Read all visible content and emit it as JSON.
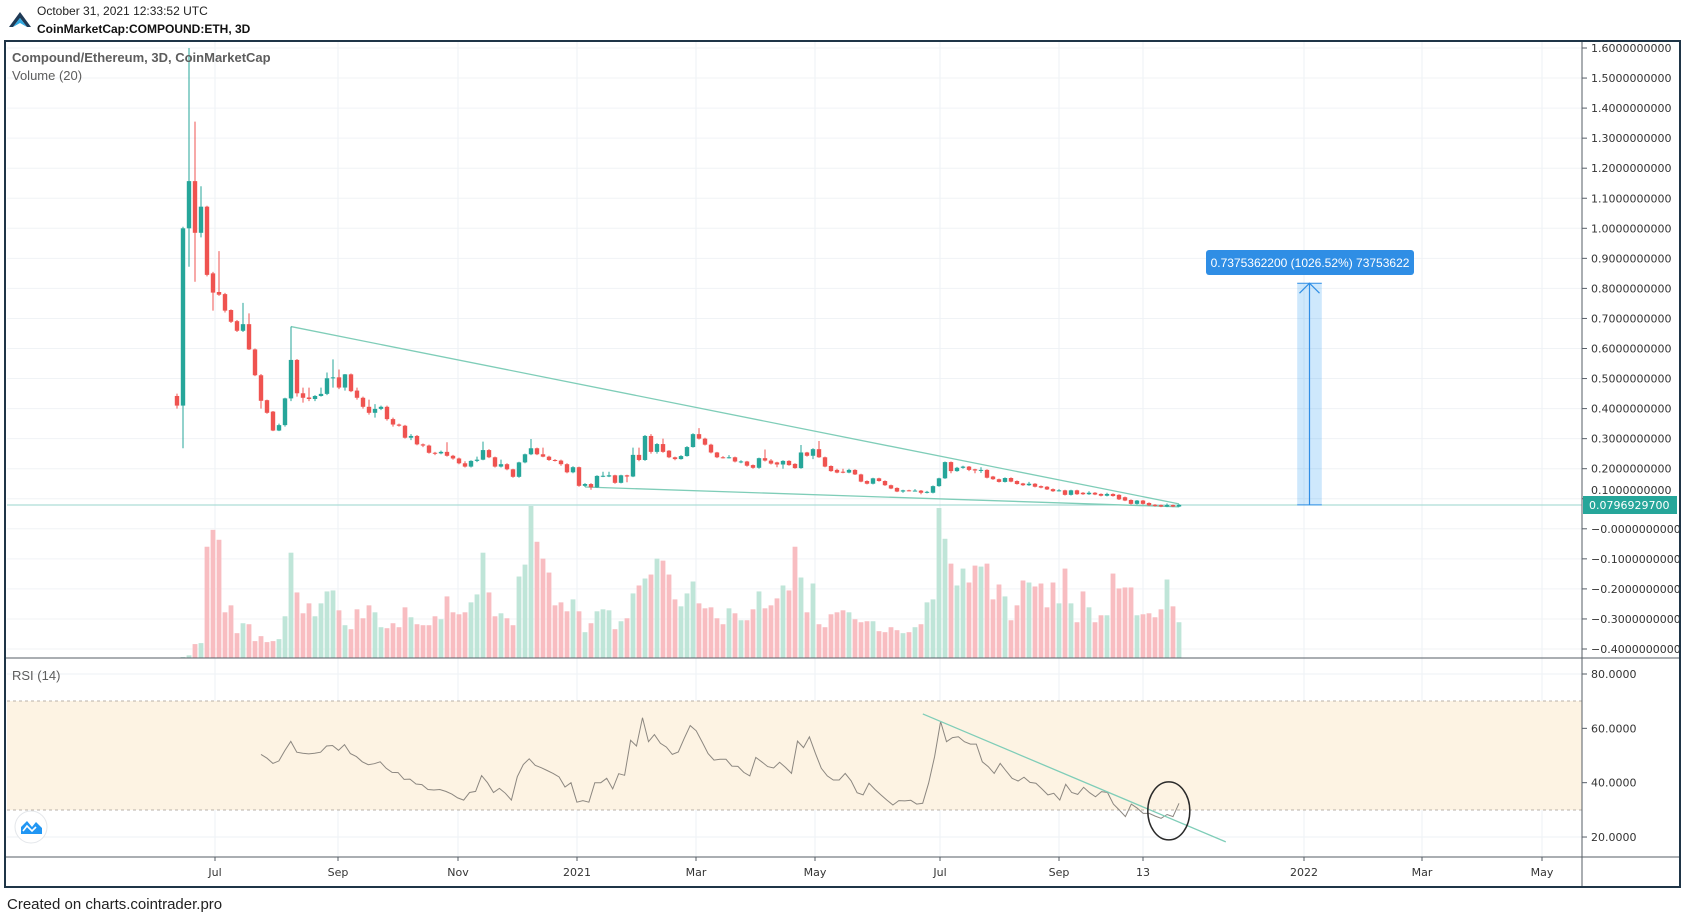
{
  "header": {
    "timestamp": "October 31, 2021 12:33:52 UTC",
    "symbol": "CoinMarketCap:COMPOUND:ETH, 3D"
  },
  "legend": {
    "title": "Compound/Ethereum, 3D, CoinMarketCap",
    "volume": "Volume (20)",
    "rsi": "RSI (14)"
  },
  "footer": "Created on charts.cointrader.pro",
  "colors": {
    "up": "#26a69a",
    "down": "#ef5350",
    "vol_up": "#bfe5d8",
    "vol_down": "#f8bdc1",
    "trendline": "#7fcdb8",
    "rsi_line": "#8c8780",
    "rsi_band": "#fdf3e3",
    "measure": "#2f8ee5",
    "frame": "#1f3547"
  },
  "chart_data": {
    "type": "candlestick",
    "title": "Compound/Ethereum, 3D, CoinMarketCap",
    "interval": "3D",
    "last_price": 0.07969297,
    "last_price_label": "0.0796929700",
    "price_axis": {
      "range": [
        -0.4,
        1.6
      ],
      "labels": [
        "1.6000000000",
        "1.5000000000",
        "1.4000000000",
        "1.3000000000",
        "1.2000000000",
        "1.1000000000",
        "1.0000000000",
        "0.9000000000",
        "0.8000000000",
        "0.7000000000",
        "0.6000000000",
        "0.5000000000",
        "0.4000000000",
        "0.3000000000",
        "0.2000000000",
        "0.1000000000",
        "−0.0000000000",
        "−0.1000000000",
        "−0.2000000000",
        "−0.3000000000",
        "−0.4000000000"
      ]
    },
    "rsi_axis": {
      "range": [
        15,
        85
      ],
      "labels": [
        "80.0000",
        "60.0000",
        "40.0000",
        "20.0000"
      ],
      "values": [
        80,
        60,
        40,
        20
      ],
      "band": [
        30,
        70
      ]
    },
    "time_axis": {
      "labels": [
        "Jul",
        "Sep",
        "Nov",
        "2021",
        "Mar",
        "May",
        "Jul",
        "Sep",
        "13",
        "2022",
        "Mar",
        "May"
      ]
    },
    "candles_ohlc": [
      [
        0.442,
        0.45,
        0.4,
        0.41
      ],
      [
        0.41,
        1.005,
        0.268,
        1.0
      ],
      [
        1.0,
        1.6,
        0.872,
        1.157
      ],
      [
        1.157,
        1.355,
        0.822,
        0.985
      ],
      [
        0.985,
        1.14,
        0.97,
        1.072
      ],
      [
        1.072,
        1.075,
        0.84,
        0.845
      ],
      [
        0.85,
        0.855,
        0.726,
        0.786
      ],
      [
        0.788,
        0.924,
        0.775,
        0.779
      ],
      [
        0.781,
        0.785,
        0.72,
        0.726
      ],
      [
        0.728,
        0.73,
        0.685,
        0.689
      ],
      [
        0.691,
        0.695,
        0.655,
        0.659
      ],
      [
        0.659,
        0.752,
        0.655,
        0.681
      ],
      [
        0.681,
        0.717,
        0.595,
        0.597
      ],
      [
        0.597,
        0.6,
        0.508,
        0.511
      ],
      [
        0.511,
        0.515,
        0.4,
        0.426
      ],
      [
        0.428,
        0.43,
        0.383,
        0.386
      ],
      [
        0.39,
        0.392,
        0.325,
        0.327
      ],
      [
        0.327,
        0.35,
        0.325,
        0.345
      ],
      [
        0.345,
        0.436,
        0.34,
        0.434
      ],
      [
        0.434,
        0.673,
        0.425,
        0.562
      ],
      [
        0.562,
        0.565,
        0.44,
        0.451
      ],
      [
        0.451,
        0.47,
        0.42,
        0.436
      ],
      [
        0.437,
        0.47,
        0.425,
        0.432
      ],
      [
        0.432,
        0.445,
        0.425,
        0.442
      ],
      [
        0.442,
        0.47,
        0.44,
        0.449
      ],
      [
        0.449,
        0.52,
        0.445,
        0.501
      ],
      [
        0.501,
        0.564,
        0.47,
        0.504
      ],
      [
        0.504,
        0.53,
        0.465,
        0.47
      ],
      [
        0.47,
        0.515,
        0.46,
        0.514
      ],
      [
        0.514,
        0.517,
        0.455,
        0.458
      ],
      [
        0.46,
        0.47,
        0.43,
        0.436
      ],
      [
        0.436,
        0.44,
        0.4,
        0.406
      ],
      [
        0.406,
        0.43,
        0.38,
        0.386
      ],
      [
        0.386,
        0.415,
        0.37,
        0.399
      ],
      [
        0.399,
        0.41,
        0.395,
        0.406
      ],
      [
        0.406,
        0.41,
        0.36,
        0.365
      ],
      [
        0.365,
        0.37,
        0.34,
        0.347
      ],
      [
        0.347,
        0.35,
        0.34,
        0.343
      ],
      [
        0.343,
        0.346,
        0.3,
        0.303
      ],
      [
        0.303,
        0.315,
        0.295,
        0.309
      ],
      [
        0.309,
        0.312,
        0.278,
        0.281
      ],
      [
        0.281,
        0.284,
        0.272,
        0.277
      ],
      [
        0.277,
        0.28,
        0.25,
        0.253
      ],
      [
        0.253,
        0.256,
        0.245,
        0.251
      ],
      [
        0.251,
        0.26,
        0.248,
        0.256
      ],
      [
        0.256,
        0.288,
        0.24,
        0.243
      ],
      [
        0.243,
        0.246,
        0.23,
        0.234
      ],
      [
        0.234,
        0.237,
        0.215,
        0.218
      ],
      [
        0.218,
        0.225,
        0.204,
        0.207
      ],
      [
        0.207,
        0.228,
        0.204,
        0.226
      ],
      [
        0.226,
        0.24,
        0.222,
        0.23
      ],
      [
        0.23,
        0.29,
        0.228,
        0.262
      ],
      [
        0.262,
        0.265,
        0.235,
        0.238
      ],
      [
        0.238,
        0.24,
        0.204,
        0.207
      ],
      [
        0.207,
        0.23,
        0.204,
        0.215
      ],
      [
        0.215,
        0.218,
        0.195,
        0.198
      ],
      [
        0.198,
        0.2,
        0.17,
        0.173
      ],
      [
        0.173,
        0.223,
        0.17,
        0.221
      ],
      [
        0.221,
        0.25,
        0.218,
        0.248
      ],
      [
        0.248,
        0.299,
        0.245,
        0.268
      ],
      [
        0.268,
        0.27,
        0.245,
        0.248
      ],
      [
        0.248,
        0.27,
        0.238,
        0.24
      ],
      [
        0.24,
        0.243,
        0.226,
        0.229
      ],
      [
        0.229,
        0.232,
        0.224,
        0.227
      ],
      [
        0.227,
        0.23,
        0.21,
        0.215
      ],
      [
        0.215,
        0.218,
        0.185,
        0.188
      ],
      [
        0.188,
        0.208,
        0.185,
        0.205
      ],
      [
        0.205,
        0.207,
        0.14,
        0.143
      ],
      [
        0.143,
        0.152,
        0.139,
        0.149
      ],
      [
        0.149,
        0.152,
        0.13,
        0.138
      ],
      [
        0.138,
        0.178,
        0.136,
        0.176
      ],
      [
        0.176,
        0.19,
        0.172,
        0.1765
      ],
      [
        0.174,
        0.19,
        0.172,
        0.178
      ],
      [
        0.178,
        0.18,
        0.15,
        0.153
      ],
      [
        0.153,
        0.18,
        0.151,
        0.178
      ],
      [
        0.178,
        0.18,
        0.155,
        0.174
      ],
      [
        0.174,
        0.27,
        0.172,
        0.246
      ],
      [
        0.246,
        0.27,
        0.225,
        0.229
      ],
      [
        0.229,
        0.312,
        0.226,
        0.309
      ],
      [
        0.309,
        0.315,
        0.25,
        0.256
      ],
      [
        0.256,
        0.285,
        0.25,
        0.282
      ],
      [
        0.282,
        0.3,
        0.253,
        0.256
      ],
      [
        0.26,
        0.262,
        0.235,
        0.238
      ],
      [
        0.238,
        0.24,
        0.228,
        0.232
      ],
      [
        0.232,
        0.245,
        0.23,
        0.242
      ],
      [
        0.242,
        0.275,
        0.24,
        0.272
      ],
      [
        0.272,
        0.318,
        0.27,
        0.315
      ],
      [
        0.315,
        0.335,
        0.297,
        0.3
      ],
      [
        0.3,
        0.303,
        0.277,
        0.28
      ],
      [
        0.28,
        0.283,
        0.251,
        0.254
      ],
      [
        0.254,
        0.256,
        0.235,
        0.238
      ],
      [
        0.238,
        0.242,
        0.234,
        0.237
      ],
      [
        0.237,
        0.245,
        0.234,
        0.238
      ],
      [
        0.238,
        0.24,
        0.221,
        0.224
      ],
      [
        0.224,
        0.228,
        0.218,
        0.2242
      ],
      [
        0.224,
        0.226,
        0.207,
        0.21
      ],
      [
        0.212,
        0.214,
        0.2,
        0.203
      ],
      [
        0.203,
        0.237,
        0.2,
        0.235
      ],
      [
        0.235,
        0.264,
        0.224,
        0.227
      ],
      [
        0.227,
        0.232,
        0.214,
        0.217
      ],
      [
        0.221,
        0.223,
        0.205,
        0.214
      ],
      [
        0.214,
        0.228,
        0.2,
        0.226
      ],
      [
        0.226,
        0.228,
        0.21,
        0.212
      ],
      [
        0.216,
        0.218,
        0.2,
        0.202
      ],
      [
        0.202,
        0.279,
        0.2,
        0.254
      ],
      [
        0.254,
        0.256,
        0.24,
        0.243
      ],
      [
        0.243,
        0.268,
        0.232,
        0.265
      ],
      [
        0.265,
        0.292,
        0.236,
        0.238
      ],
      [
        0.238,
        0.24,
        0.205,
        0.207
      ],
      [
        0.209,
        0.211,
        0.19,
        0.192
      ],
      [
        0.196,
        0.2,
        0.185,
        0.187
      ],
      [
        0.19,
        0.2,
        0.185,
        0.187
      ],
      [
        0.187,
        0.2,
        0.185,
        0.196
      ],
      [
        0.196,
        0.198,
        0.179,
        0.181
      ],
      [
        0.181,
        0.183,
        0.155,
        0.157
      ],
      [
        0.159,
        0.161,
        0.148,
        0.15
      ],
      [
        0.15,
        0.17,
        0.148,
        0.168
      ],
      [
        0.168,
        0.17,
        0.157,
        0.159
      ],
      [
        0.159,
        0.161,
        0.143,
        0.145
      ],
      [
        0.145,
        0.147,
        0.132,
        0.134
      ],
      [
        0.136,
        0.138,
        0.122,
        0.124
      ],
      [
        0.124,
        0.13,
        0.12,
        0.128
      ],
      [
        0.128,
        0.13,
        0.125,
        0.127
      ],
      [
        0.127,
        0.132,
        0.124,
        0.1272
      ],
      [
        0.127,
        0.129,
        0.115,
        0.12
      ],
      [
        0.12,
        0.126,
        0.118,
        0.123
      ],
      [
        0.12,
        0.144,
        0.118,
        0.142
      ],
      [
        0.142,
        0.17,
        0.14,
        0.168
      ],
      [
        0.168,
        0.224,
        0.166,
        0.222
      ],
      [
        0.222,
        0.224,
        0.185,
        0.192
      ],
      [
        0.192,
        0.206,
        0.19,
        0.203
      ],
      [
        0.203,
        0.21,
        0.2,
        0.207
      ],
      [
        0.207,
        0.209,
        0.192,
        0.196
      ],
      [
        0.198,
        0.2,
        0.185,
        0.194
      ],
      [
        0.194,
        0.205,
        0.186,
        0.196
      ],
      [
        0.196,
        0.198,
        0.168,
        0.17
      ],
      [
        0.174,
        0.176,
        0.163,
        0.165
      ],
      [
        0.165,
        0.167,
        0.154,
        0.156
      ],
      [
        0.156,
        0.171,
        0.154,
        0.169
      ],
      [
        0.169,
        0.171,
        0.155,
        0.157
      ],
      [
        0.159,
        0.161,
        0.147,
        0.149
      ],
      [
        0.151,
        0.153,
        0.143,
        0.145
      ],
      [
        0.145,
        0.156,
        0.143,
        0.15
      ],
      [
        0.15,
        0.152,
        0.138,
        0.14
      ],
      [
        0.142,
        0.144,
        0.135,
        0.137
      ],
      [
        0.14,
        0.142,
        0.129,
        0.131
      ],
      [
        0.132,
        0.134,
        0.123,
        0.125
      ],
      [
        0.125,
        0.132,
        0.124,
        0.128
      ],
      [
        0.128,
        0.13,
        0.111,
        0.113
      ],
      [
        0.113,
        0.13,
        0.111,
        0.128
      ],
      [
        0.128,
        0.13,
        0.113,
        0.115
      ],
      [
        0.12,
        0.122,
        0.113,
        0.115
      ],
      [
        0.115,
        0.125,
        0.113,
        0.12
      ],
      [
        0.12,
        0.122,
        0.112,
        0.114
      ],
      [
        0.116,
        0.118,
        0.108,
        0.11
      ],
      [
        0.11,
        0.12,
        0.108,
        0.116
      ],
      [
        0.116,
        0.118,
        0.107,
        0.109
      ],
      [
        0.113,
        0.115,
        0.096,
        0.098
      ],
      [
        0.105,
        0.107,
        0.092,
        0.094
      ],
      [
        0.096,
        0.098,
        0.081,
        0.083
      ],
      [
        0.083,
        0.096,
        0.081,
        0.094
      ],
      [
        0.094,
        0.096,
        0.081,
        0.083
      ],
      [
        0.086,
        0.088,
        0.076,
        0.078
      ],
      [
        0.08,
        0.082,
        0.074,
        0.076
      ],
      [
        0.079,
        0.081,
        0.072,
        0.074
      ],
      [
        0.074,
        0.084,
        0.072,
        0.079
      ],
      [
        0.079,
        0.081,
        0.072,
        0.074
      ],
      [
        0.074,
        0.082,
        0.072,
        0.0797
      ]
    ],
    "volume_relative": [
      0,
      1,
      2.7,
      14,
      15,
      112,
      129,
      119,
      46,
      53,
      25,
      35,
      34,
      17,
      22,
      16,
      17,
      19,
      42,
      106,
      66,
      45,
      55,
      42,
      55,
      67,
      68,
      48,
      33,
      29,
      49,
      40,
      53,
      46,
      31,
      30,
      35,
      31,
      51,
      41,
      34,
      33,
      33,
      42,
      39,
      62,
      46,
      44,
      46,
      56,
      64,
      106,
      66,
      42,
      45,
      40,
      33,
      82,
      94,
      153,
      117,
      100,
      86,
      53,
      56,
      47,
      59,
      47,
      26,
      35,
      47,
      49,
      48,
      29,
      37,
      40,
      65,
      73,
      80,
      84,
      100,
      98,
      84,
      59,
      52,
      65,
      77,
      55,
      50,
      51,
      40,
      34,
      50,
      45,
      38,
      38,
      49,
      67,
      50,
      53,
      60,
      73,
      68,
      112,
      81,
      46,
      75,
      34,
      31,
      44,
      46,
      48,
      46,
      39,
      36,
      37,
      37,
      27,
      26,
      31,
      28,
      25,
      26,
      31,
      34,
      56,
      59,
      151,
      120,
      95,
      73,
      90,
      76,
      93,
      92,
      95,
      59,
      74,
      62,
      38,
      53,
      78,
      76,
      72,
      75,
      51,
      76,
      55,
      90,
      55,
      36,
      67,
      51,
      36,
      43,
      43,
      85,
      70,
      71,
      71,
      43,
      44,
      45,
      41,
      49,
      79,
      52,
      36
    ],
    "rsi_start_bar": 14,
    "rsi": [
      50.4,
      49.0,
      47.1,
      48.0,
      51.8,
      55.2,
      51.2,
      50.8,
      50.6,
      50.8,
      51.2,
      53.5,
      53.7,
      51.9,
      54.0,
      50.7,
      49.6,
      47.7,
      46.6,
      47.0,
      47.7,
      45.3,
      43.8,
      43.7,
      41.2,
      41.3,
      39.5,
      39.3,
      37.5,
      37.3,
      37.5,
      36.8,
      35.8,
      34.4,
      33.6,
      36.4,
      36.8,
      42.6,
      40.0,
      36.4,
      37.9,
      36.1,
      33.6,
      42.2,
      46.7,
      48.8,
      46.4,
      45.5,
      44.5,
      43.4,
      42.1,
      38.4,
      40.0,
      32.8,
      33.4,
      32.8,
      40.0,
      40.0,
      41.6,
      37.7,
      43.3,
      42.7,
      55.6,
      53.5,
      63.9,
      55.1,
      57.7,
      54.5,
      53.1,
      50.4,
      51.3,
      56.3,
      61.0,
      59.1,
      55.0,
      50.7,
      48.3,
      48.6,
      48.6,
      46.1,
      46.0,
      43.8,
      42.5,
      49.3,
      47.7,
      45.9,
      45.4,
      47.5,
      45.6,
      43.4,
      55.3,
      52.9,
      56.9,
      50.8,
      45.3,
      42.5,
      41.0,
      41.0,
      43.4,
      40.7,
      36.3,
      35.5,
      39.8,
      37.5,
      35.5,
      33.6,
      31.8,
      33.4,
      33.3,
      33.5,
      32.1,
      32.4,
      39.8,
      49.6,
      62.5,
      55.1,
      56.6,
      56.9,
      55.1,
      54.2,
      54.2,
      47.7,
      45.9,
      43.4,
      47.1,
      44.3,
      41.6,
      40.6,
      42.0,
      40.1,
      39.8,
      37.7,
      35.5,
      36.1,
      33.6,
      39.4,
      36.4,
      35.7,
      38.3,
      36.3,
      34.8,
      36.7,
      36.4,
      32.1,
      29.9,
      27.5,
      32.1,
      30.6,
      28.7,
      28.7,
      27.7,
      26.9,
      28.3,
      27.5,
      32.4
    ],
    "drawings": {
      "price_trend_upper": {
        "from": [
          19,
          0.673
        ],
        "to": [
          167,
          0.083
        ]
      },
      "price_trend_lower": {
        "from": [
          68,
          0.139
        ],
        "to": [
          167,
          0.073
        ]
      },
      "rsi_trend": {
        "from": [
          124.3,
          65.3
        ],
        "to": [
          174.8,
          18.2
        ]
      },
      "rsi_circle": {
        "center": [
          165.3,
          29.6
        ]
      },
      "measure": {
        "bar_from": 186.7,
        "bar_to": 190.8,
        "price_from": 0.0797,
        "price_to": 0.8172,
        "label": "0.7375362200 (1026.52%) 73753622"
      }
    }
  }
}
